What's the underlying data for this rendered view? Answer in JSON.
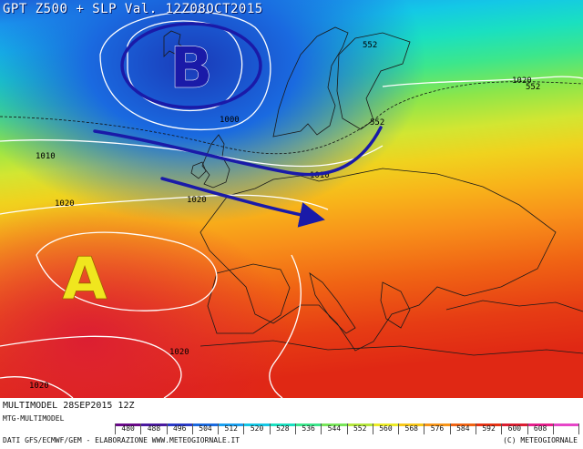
{
  "header": {
    "title": "GPT Z500 + SLP Val. 12Z08OCT2015"
  },
  "footer": {
    "run": "MULTIMODEL 28SEP2015 12Z",
    "model": "MTG-MULTIMODEL",
    "sources": "DATI GFS/ECMWF/GEM - ELABORAZIONE WWW.METEOGIORNALE.IT",
    "copyright": "(C) METEOGIORNALE"
  },
  "pressure_centers": {
    "low": "B",
    "high": "A"
  },
  "slp_labels": [
    "1000",
    "1010",
    "1010",
    "1020",
    "1020",
    "1020",
    "1020",
    "1020"
  ],
  "gpt_labels": [
    "552",
    "552",
    "552"
  ],
  "colors": {
    "low_center": "#1a1aa8",
    "high_center": "#f0e61e",
    "arrows": "#1a1aa8",
    "isobars": "#ffffff"
  },
  "color_scale": [
    {
      "value": "480",
      "color": "#6a0a8a"
    },
    {
      "value": "488",
      "color": "#4b1aa0"
    },
    {
      "value": "496",
      "color": "#2a3ac8"
    },
    {
      "value": "504",
      "color": "#1a6ae0"
    },
    {
      "value": "512",
      "color": "#1aa0f0"
    },
    {
      "value": "520",
      "color": "#14c8e6"
    },
    {
      "value": "528",
      "color": "#1ae0c0"
    },
    {
      "value": "536",
      "color": "#3ce68c"
    },
    {
      "value": "544",
      "color": "#78e65a"
    },
    {
      "value": "552",
      "color": "#b4e63c"
    },
    {
      "value": "560",
      "color": "#ecec28"
    },
    {
      "value": "568",
      "color": "#f8c81a"
    },
    {
      "value": "576",
      "color": "#f8961a"
    },
    {
      "value": "584",
      "color": "#f06414"
    },
    {
      "value": "592",
      "color": "#e63214"
    },
    {
      "value": "600",
      "color": "#dc1e32"
    },
    {
      "value": "608",
      "color": "#e61e8c"
    },
    {
      "value": "",
      "color": "#e646c8"
    }
  ]
}
